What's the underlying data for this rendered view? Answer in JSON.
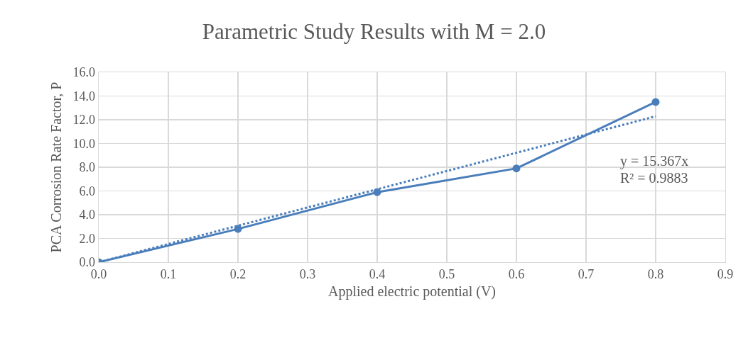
{
  "chart_data": {
    "type": "line",
    "title": "Parametric Study Results with M = 2.0",
    "xlabel": "Applied electric potential (V)",
    "ylabel": "PCA Corrosion Rate Factor, P",
    "x": [
      0,
      0.2,
      0.4,
      0.6,
      0.8
    ],
    "series": [
      {
        "color": "#4a7ebb",
        "values": [
          0,
          2.8,
          5.9,
          7.9,
          13.5
        ]
      },
      {
        "type": "line",
        "color": "#4a7ebb",
        "x": [
          0,
          0.8
        ],
        "values": [
          0,
          12.29
        ],
        "line_style": "dotted",
        "marker": "none"
      }
    ],
    "xlim": [
      0,
      0.9
    ],
    "xticks": [
      {
        "value": 0,
        "label": "0.0"
      },
      0.1,
      0.2,
      0.3,
      0.4,
      0.5,
      0.6,
      0.7,
      0.8,
      0.9
    ],
    "ylim": [
      0,
      16
    ],
    "yticks": [
      {
        "value": 0,
        "label": "0.0"
      },
      {
        "value": 2,
        "label": "2.0"
      },
      {
        "value": 4,
        "label": "4.0"
      },
      {
        "value": 6,
        "label": "6.0"
      },
      {
        "value": 8,
        "label": "8.0"
      },
      {
        "value": 10,
        "label": "10.0"
      },
      {
        "value": 12,
        "label": "12.0"
      },
      {
        "value": 14,
        "label": "14.0"
      },
      {
        "value": 16,
        "label": "16.0"
      }
    ],
    "annotations": [
      "y = 15.367x",
      "R² = 0.9883"
    ],
    "grid": true,
    "marker": "circle",
    "line_style": "solid"
  }
}
